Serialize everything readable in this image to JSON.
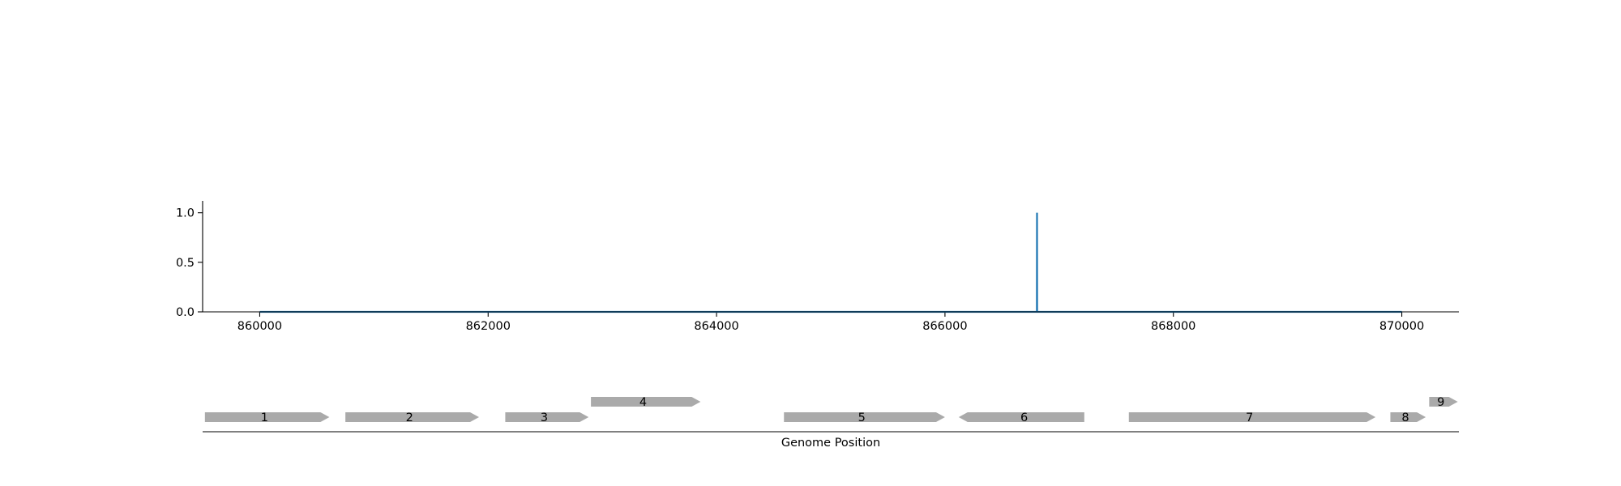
{
  "chart_data": [
    {
      "type": "line",
      "title": "",
      "xlabel": "",
      "ylabel": "",
      "xlim": [
        859500,
        870500
      ],
      "ylim": [
        0.0,
        1.12
      ],
      "grid": false,
      "legend": "none",
      "color": "#1f77b4",
      "x_ticks": [
        {
          "value": 860000,
          "label": "860000"
        },
        {
          "value": 862000,
          "label": "862000"
        },
        {
          "value": 864000,
          "label": "864000"
        },
        {
          "value": 866000,
          "label": "866000"
        },
        {
          "value": 868000,
          "label": "868000"
        },
        {
          "value": 870000,
          "label": "870000"
        }
      ],
      "y_ticks": [
        {
          "value": 0.0,
          "label": "0.0"
        },
        {
          "value": 0.5,
          "label": "0.5"
        },
        {
          "value": 1.0,
          "label": "1.0"
        }
      ],
      "series": [
        {
          "x": [
            860000,
            866805,
            866806,
            866807,
            870000
          ],
          "y": [
            0.0,
            0.0,
            1.0,
            0.0,
            0.0
          ]
        }
      ]
    },
    {
      "type": "gene-track",
      "xlabel": "Genome Position",
      "xlim": [
        859500,
        870500
      ],
      "color": "#aaaaaa",
      "genes": [
        {
          "label": "1",
          "start": 859520,
          "end": 860610,
          "strand": "+",
          "row": 0
        },
        {
          "label": "2",
          "start": 860750,
          "end": 861920,
          "strand": "+",
          "row": 0
        },
        {
          "label": "3",
          "start": 862150,
          "end": 862880,
          "strand": "+",
          "row": 0
        },
        {
          "label": "4",
          "start": 862900,
          "end": 863860,
          "strand": "+",
          "row": 1
        },
        {
          "label": "5",
          "start": 864590,
          "end": 866000,
          "strand": "+",
          "row": 0
        },
        {
          "label": "6",
          "start": 866120,
          "end": 867220,
          "strand": "-",
          "row": 0
        },
        {
          "label": "7",
          "start": 867610,
          "end": 869770,
          "strand": "+",
          "row": 0
        },
        {
          "label": "8",
          "start": 869900,
          "end": 870210,
          "strand": "+",
          "row": 0
        },
        {
          "label": "9",
          "start": 870240,
          "end": 870490,
          "strand": "+",
          "row": 1
        }
      ]
    }
  ]
}
